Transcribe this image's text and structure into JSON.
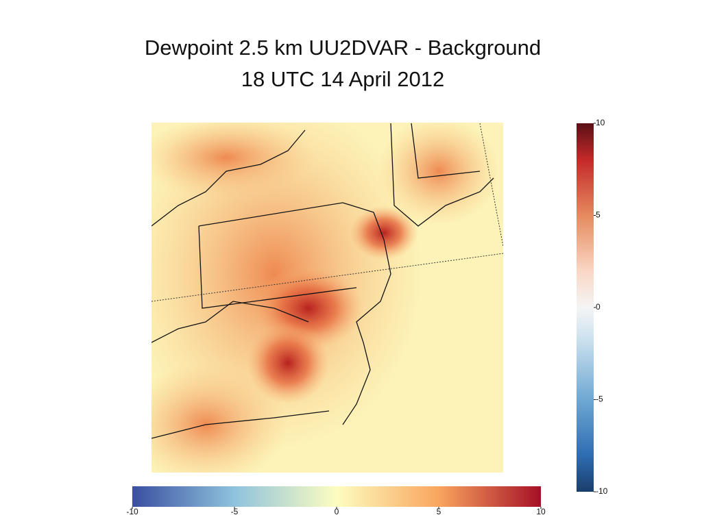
{
  "title": {
    "line1": "Dewpoint 2.5 km UU2DVAR - Background",
    "line2": "18 UTC 14 April 2012"
  },
  "colorbars": [
    {
      "orientation": "horizontal",
      "lim": [
        -10,
        10
      ],
      "ticks": [
        -10,
        -5,
        0,
        5,
        10
      ]
    },
    {
      "orientation": "vertical",
      "lim": [
        -10,
        10
      ],
      "ticks": [
        10,
        5,
        0,
        -5,
        -10
      ]
    }
  ]
}
